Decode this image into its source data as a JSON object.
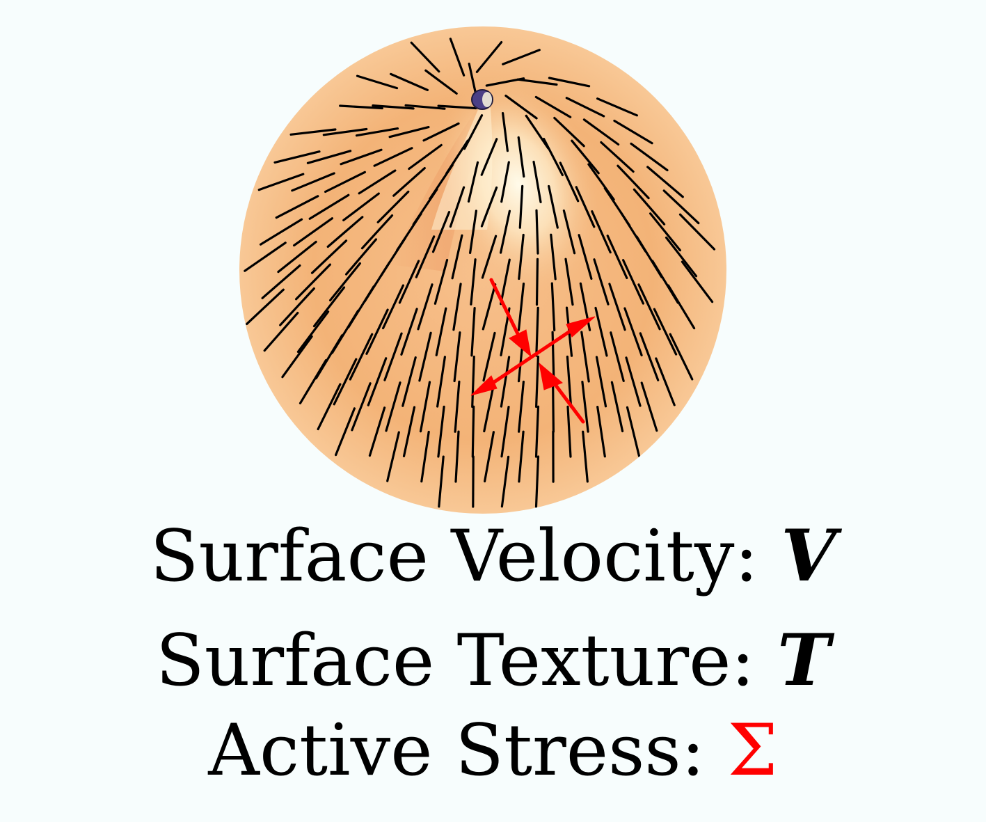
{
  "captions": {
    "velocity": {
      "label": "Surface Velocity:",
      "symbol": "V"
    },
    "texture": {
      "label": "Surface Texture:",
      "symbol": "T"
    },
    "stress": {
      "label": "Active Stress:",
      "symbol": "Σ"
    }
  },
  "colors": {
    "background": "#f7fdfd",
    "surface_base": "#f6b77a",
    "surface_highlight": "#fff8e6",
    "texture_lines": "#000000",
    "stress_arrows": "#ff0000",
    "defect": "#4a3f86",
    "caption_text": "#000000"
  }
}
